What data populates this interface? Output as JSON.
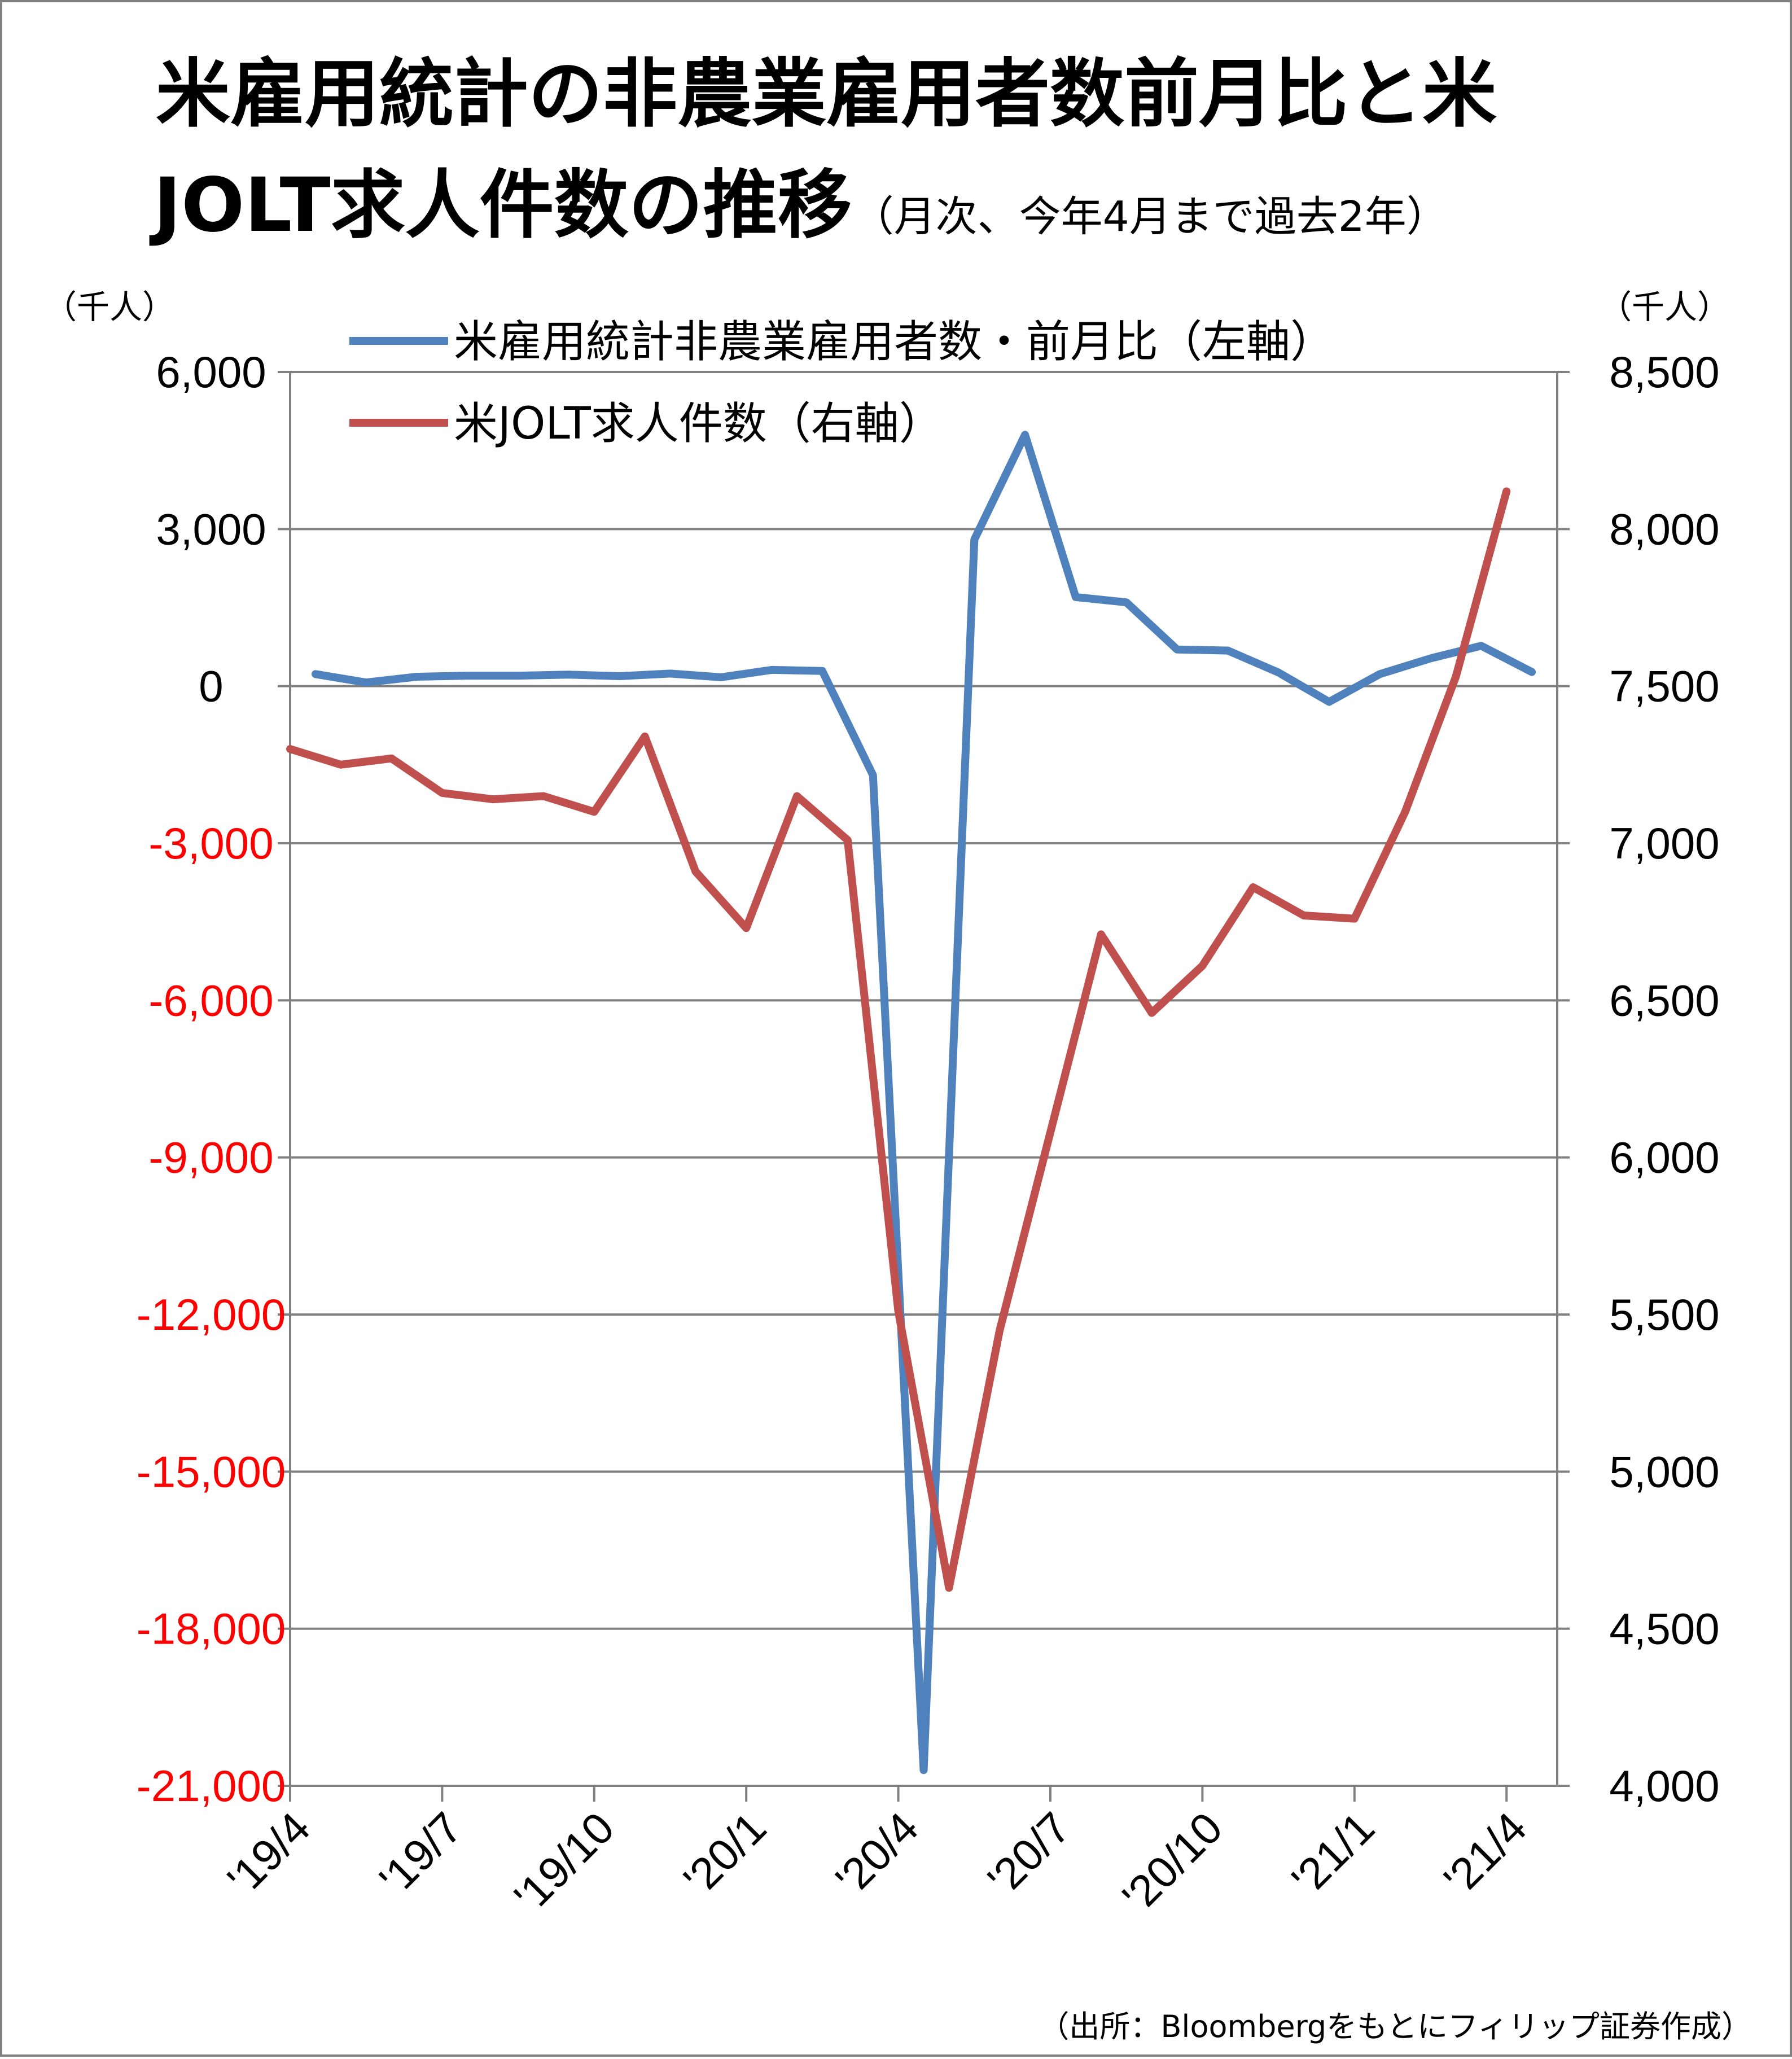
{
  "title": {
    "line1": "米雇用統計の非農業雇用者数前月比と米",
    "line2_main": "JOLT求人件数の推移",
    "line2_sub": "（月次、今年4月まで過去2年）"
  },
  "axis_units": {
    "left": "（千人）",
    "right": "（千人）"
  },
  "source": "（出所：Bloombergをもとにフィリップ証券作成）",
  "colors": {
    "nfp": "#4F81BD",
    "jolts": "#C0504D",
    "negative_tick": "#FF0000",
    "grid": "#808080"
  },
  "chart_data": {
    "type": "line",
    "legend_position": "top-left",
    "grid": true,
    "x": [
      "'19/4",
      "'19/5",
      "'19/6",
      "'19/7",
      "'19/8",
      "'19/9",
      "'19/10",
      "'19/11",
      "'19/12",
      "'20/1",
      "'20/2",
      "'20/3",
      "'20/4",
      "'20/5",
      "'20/6",
      "'20/7",
      "'20/8",
      "'20/9",
      "'20/10",
      "'20/11",
      "'20/12",
      "'21/1",
      "'21/2",
      "'21/3",
      "'21/4"
    ],
    "x_tick_labels": [
      "'19/4",
      "'19/7",
      "'19/10",
      "'20/1",
      "'20/4",
      "'20/7",
      "'20/10",
      "'21/1",
      "'21/4"
    ],
    "y_left": {
      "range": [
        -21000,
        6000
      ],
      "ticks": [
        6000,
        3000,
        0,
        -3000,
        -6000,
        -9000,
        -12000,
        -15000,
        -18000,
        -21000
      ],
      "tick_labels": [
        "6,000",
        "3,000",
        "0",
        "-3,000",
        "-6,000",
        "-9,000",
        "-12,000",
        "-15,000",
        "-18,000",
        "-21,000"
      ]
    },
    "y_right": {
      "range": [
        4000,
        8500
      ],
      "ticks": [
        8500,
        8000,
        7500,
        7000,
        6500,
        6000,
        5500,
        5000,
        4500,
        4000
      ],
      "tick_labels": [
        "8,500",
        "8,000",
        "7,500",
        "7,000",
        "6,500",
        "6,000",
        "5,500",
        "5,000",
        "4,500",
        "4,000"
      ]
    },
    "series": [
      {
        "name": "米雇用統計非農業雇用者数・前月比（左軸）",
        "axis": "left",
        "color": "#4F81BD",
        "x_offset": 0.5,
        "values": [
          230,
          70,
          180,
          200,
          200,
          220,
          190,
          240,
          170,
          310,
          290,
          -1700,
          -20700,
          2800,
          4800,
          1700,
          1600,
          700,
          680,
          260,
          -300,
          230,
          530,
          770,
          270
        ]
      },
      {
        "name": "米JOLT求人件数（右軸）",
        "axis": "right",
        "color": "#C0504D",
        "x_offset": 0.0,
        "values": [
          7300,
          7250,
          7270,
          7160,
          7140,
          7150,
          7100,
          7340,
          6910,
          6730,
          7150,
          7010,
          5510,
          4630,
          5450,
          6080,
          6710,
          6460,
          6610,
          6860,
          6770,
          6760,
          7100,
          7530,
          8120
        ]
      }
    ]
  }
}
